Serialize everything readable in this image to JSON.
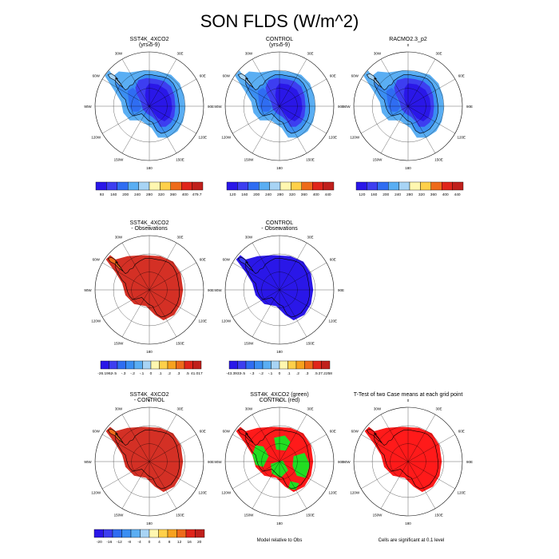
{
  "title": "SON FLDS (W/m^2)",
  "palette": [
    "#2a17e8",
    "#3d3ef0",
    "#2f6df2",
    "#3a8ef2",
    "#5aaef3",
    "#a8d4f5",
    "#fff7b0",
    "#ffd04a",
    "#f7a21e",
    "#ee6b1a",
    "#e0251a",
    "#c0201c"
  ],
  "colors": {
    "ocean": "#ffffff",
    "land_outline": "#000000",
    "green": "#22dd22",
    "red": "#ff1a1a",
    "diff_red": "#d43025"
  },
  "panels": [
    {
      "id": "p1",
      "line1": "SST4K_4XCO2",
      "line2": "(yrs 5-9)",
      "fill": "field"
    },
    {
      "id": "p2",
      "line1": "CONTROL",
      "line2": "(yrs 5-9)",
      "fill": "field"
    },
    {
      "id": "p3",
      "line1": "RACMO2.3_p2",
      "line2": "",
      "fill": "field"
    },
    {
      "id": "p4",
      "line1": "SST4K_4XCO2",
      "line2": "- Observations",
      "fill": "diffred"
    },
    {
      "id": "p5",
      "line1": "CONTROL",
      "line2": "- Observations",
      "fill": "diffblue"
    },
    {
      "id": "p6",
      "line1": "SST4K_4XCO2",
      "line2": "- CONTROL",
      "fill": "diffred"
    },
    {
      "id": "p7",
      "line1": "SST4K_4XCO2 (green)",
      "line2": "CONTROL (red)",
      "fill": "greenred"
    },
    {
      "id": "p8",
      "line1": "T-Test of two Case means at each grid point",
      "line2": "",
      "fill": "ttest"
    }
  ],
  "longitude_labels": [
    "0",
    "30E",
    "60E",
    "90E",
    "120E",
    "150E",
    "180",
    "150W",
    "120W",
    "90W",
    "60W",
    "30W"
  ],
  "colorbars": [
    {
      "id": "cb1",
      "labels": [
        "93",
        "160",
        "200",
        "240",
        "280",
        "320",
        "360",
        "400",
        "479.7"
      ]
    },
    {
      "id": "cb2",
      "labels": [
        "120",
        "160",
        "200",
        "240",
        "280",
        "320",
        "360",
        "400",
        "440"
      ]
    },
    {
      "id": "cb3",
      "labels": [
        "120",
        "160",
        "200",
        "240",
        "280",
        "320",
        "360",
        "400",
        "440"
      ]
    },
    {
      "id": "cb4",
      "labels": [
        "-26.1962",
        "-.5",
        "-.3",
        "-.2",
        "-.1",
        "0",
        ".1",
        ".2",
        ".3",
        ".5",
        "41.017"
      ]
    },
    {
      "id": "cb5",
      "labels": [
        "-43.3933",
        "-.5",
        "-.3",
        "-.2",
        "-.1",
        "0",
        ".1",
        ".2",
        ".3",
        ".5",
        "27.2258"
      ]
    },
    {
      "id": "cb6",
      "labels": [
        "-20",
        "-16",
        "-12",
        "-8",
        "-4",
        "0",
        "4",
        "8",
        "12",
        "16",
        "20"
      ]
    }
  ],
  "notes": {
    "model_relative": "Model relative to Obs",
    "significance": "Cells are significant at 0.1 level"
  },
  "chart_data": {
    "type": "heatmap",
    "title": "SON FLDS (W/m^2)",
    "projection": "polar stereographic (south pole)",
    "colorbars": [
      {
        "panel": "SST4K_4XCO2 (yrs 5-9)",
        "min": 93,
        "max": 479.7,
        "levels": [
          160,
          200,
          240,
          280,
          320,
          360,
          400
        ]
      },
      {
        "panel": "CONTROL (yrs 5-9)",
        "levels": [
          120,
          160,
          200,
          240,
          280,
          320,
          360,
          400,
          440
        ]
      },
      {
        "panel": "RACMO2.3_p2",
        "levels": [
          120,
          160,
          200,
          240,
          280,
          320,
          360,
          400,
          440
        ]
      },
      {
        "panel": "SST4K_4XCO2 - Observations",
        "min": -26.1962,
        "max": 41.017,
        "levels": [
          -0.5,
          -0.3,
          -0.2,
          -0.1,
          0,
          0.1,
          0.2,
          0.3,
          0.5
        ]
      },
      {
        "panel": "CONTROL - Observations",
        "min": -43.3933,
        "max": 27.2258,
        "levels": [
          -0.5,
          -0.3,
          -0.2,
          -0.1,
          0,
          0.1,
          0.2,
          0.3,
          0.5
        ]
      },
      {
        "panel": "SST4K_4XCO2 - CONTROL",
        "levels": [
          -20,
          -16,
          -12,
          -8,
          -4,
          0,
          4,
          8,
          12,
          16,
          20
        ]
      }
    ]
  }
}
